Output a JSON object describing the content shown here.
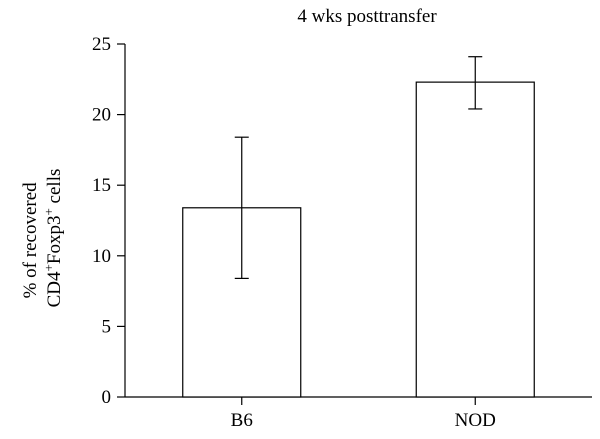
{
  "chart_data": {
    "type": "bar",
    "title": "4 wks posttransfer",
    "ylabel_line1": "% of recovered",
    "ylabel_line2": {
      "part1": "CD4",
      "sup1": "+",
      "part2": "Foxp3",
      "sup2": "+",
      "part3": " cells"
    },
    "xlabel": "",
    "categories": [
      "B6",
      "NOD"
    ],
    "values": [
      13.4,
      22.3
    ],
    "error_low": [
      8.4,
      20.4
    ],
    "error_high": [
      18.4,
      24.1
    ],
    "ylim": [
      0,
      25
    ],
    "yticks": [
      0,
      5,
      10,
      15,
      20,
      25
    ],
    "grid": false,
    "bar_fill": "#ffffff",
    "bar_edge": "#000000"
  }
}
